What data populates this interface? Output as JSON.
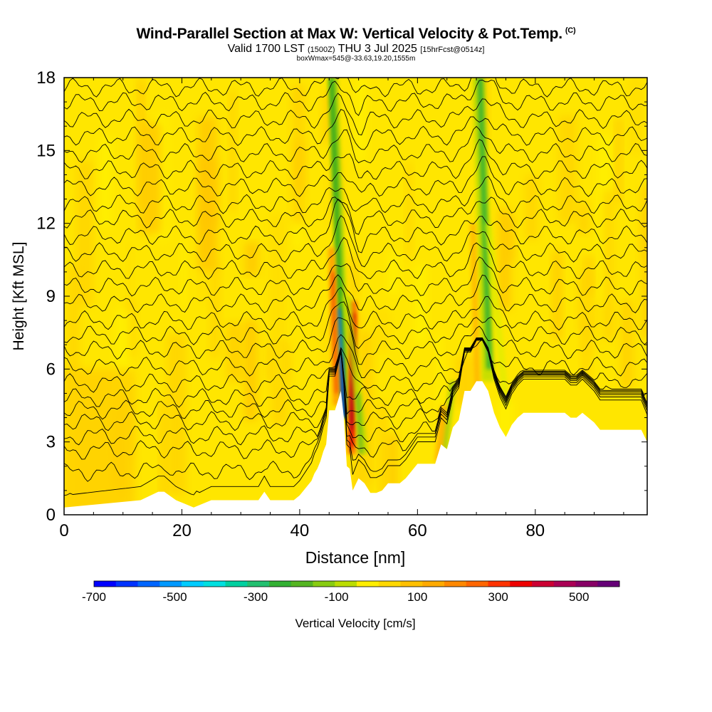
{
  "header": {
    "title": "Wind-Parallel Section at Max W: Vertical Velocity & Pot.Temp.",
    "copyright": "(C)",
    "valid_prefix": "Valid 1700 LST",
    "valid_utc": "(1500Z)",
    "valid_date": "THU 3 Jul 2025",
    "forecast": "[15hrFcst@0514z]",
    "box_info": "boxWmax=545@-33.63,19.20,1555m"
  },
  "colors": {
    "background": "#ffffff",
    "frame": "#000000",
    "contour": "#000000",
    "field_base": "#ffe600",
    "terrain": "#ffffff",
    "colorbar": [
      "#0000ff",
      "#0033ff",
      "#0066ff",
      "#0099ff",
      "#00ccff",
      "#00e0e0",
      "#00d0a0",
      "#22c070",
      "#33b033",
      "#55b522",
      "#88cc11",
      "#bbdd00",
      "#ffee00",
      "#ffd800",
      "#ffc000",
      "#ffaa00",
      "#ff8800",
      "#ff6600",
      "#ff3300",
      "#ee0000",
      "#cc0033",
      "#aa0055",
      "#880066",
      "#660077"
    ]
  },
  "colorbar": {
    "tick_labels": [
      "-700",
      "-500",
      "-300",
      "-100",
      "100",
      "300",
      "500"
    ],
    "label": "Vertical Velocity [cm/s]"
  },
  "chart_data": {
    "type": "heatmap",
    "title": "Wind-Parallel Section at Max W: Vertical Velocity & Pot.Temp.",
    "xlabel": "Distance [nm]",
    "ylabel": "Height [Kft MSL]",
    "xlim": [
      0,
      99
    ],
    "ylim": [
      0,
      18
    ],
    "x_ticks": [
      "0",
      "20",
      "40",
      "60",
      "80"
    ],
    "y_ticks": [
      "0",
      "3",
      "6",
      "9",
      "12",
      "15",
      "18"
    ],
    "colorbar_range_cm_s": [
      -700,
      545
    ],
    "terrain_kft": {
      "x": [
        0,
        13,
        16,
        17,
        19,
        20,
        22,
        25,
        27,
        30,
        33,
        34,
        35,
        37,
        38,
        39,
        40,
        41,
        42,
        42.5,
        43,
        43.5,
        44,
        44.5,
        45,
        46,
        47,
        47.5,
        48,
        48.5,
        49,
        50,
        51,
        52,
        53,
        54,
        55,
        56,
        57,
        58,
        59,
        60,
        61,
        62,
        63,
        64,
        65,
        66,
        67,
        68,
        69,
        70,
        71,
        72,
        73,
        74,
        75,
        76,
        77,
        78,
        79,
        80,
        81,
        82,
        83,
        84,
        85,
        86,
        87,
        88,
        89,
        90,
        91,
        92,
        93,
        94,
        95,
        96,
        97,
        98,
        99
      ],
      "y": [
        0.3,
        0.6,
        0.95,
        0.95,
        0.6,
        0.5,
        0.3,
        0.6,
        0.6,
        0.6,
        0.6,
        0.95,
        0.6,
        0.6,
        0.6,
        0.6,
        0.8,
        1.1,
        1.4,
        1.7,
        1.9,
        2.2,
        2.6,
        2.9,
        4.3,
        4.3,
        5.1,
        4.0,
        2.0,
        1.9,
        1.0,
        1.5,
        1.3,
        0.9,
        0.9,
        1.0,
        1.3,
        1.3,
        1.3,
        1.5,
        1.8,
        2.1,
        2.1,
        2.1,
        2.1,
        2.9,
        2.7,
        3.6,
        3.9,
        5.1,
        5.1,
        5.5,
        5.5,
        5.1,
        4.2,
        3.6,
        3.2,
        3.7,
        4.0,
        4.2,
        4.2,
        4.2,
        4.2,
        4.2,
        4.2,
        4.2,
        4.2,
        4.0,
        4.0,
        4.2,
        4.0,
        3.8,
        3.5,
        3.5,
        3.5,
        3.5,
        3.5,
        3.5,
        3.5,
        3.5,
        3.0
      ]
    },
    "theta_contour_base_kft": [
      0.5,
      1.7,
      2.6,
      3.2,
      3.8,
      4.3,
      4.8,
      5.4,
      6.1,
      6.8,
      7.4,
      8.0,
      8.7,
      9.4,
      10.1,
      10.8,
      11.5,
      12.2,
      12.8,
      13.5,
      14.2,
      14.9,
      15.6,
      16.3,
      17.0,
      17.6
    ],
    "updraft_cores": [
      {
        "x_nm": 48.8,
        "kft_range": [
          2.5,
          8.5
        ],
        "w_cm_s": 545
      },
      {
        "x_nm": 46.2,
        "kft_range": [
          4.0,
          10.5
        ],
        "w_cm_s": 250
      }
    ],
    "downdraft_cores": [
      {
        "x_nm": 47.6,
        "kft_range": [
          4.0,
          18.0
        ],
        "w_cm_s": -700
      },
      {
        "x_nm": 72.5,
        "kft_range": [
          5.5,
          18.0
        ],
        "w_cm_s": -250
      },
      {
        "x_nm": 50.5,
        "kft_range": [
          2.5,
          9.0
        ],
        "w_cm_s": -150
      }
    ]
  }
}
